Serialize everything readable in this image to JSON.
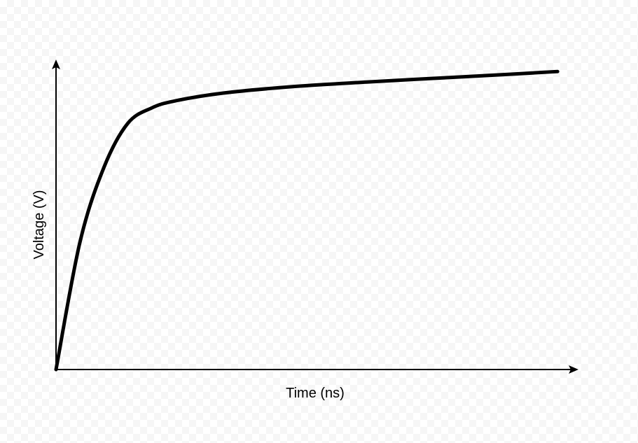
{
  "chart_data": {
    "type": "line",
    "title": "",
    "xlabel": "Time (ns)",
    "ylabel": "Voltage (V)",
    "grid": false,
    "legend": "none",
    "xlim": [
      0,
      10
    ],
    "ylim": [
      0,
      6
    ],
    "series": [
      {
        "color": "#000000",
        "x": [
          0,
          0.5,
          1.0,
          1.5,
          2.0,
          2.5,
          3.5,
          5.0,
          6.5,
          8.0,
          9.5,
          10.5
        ],
        "y": [
          0,
          2.3,
          3.65,
          4.45,
          4.73,
          4.86,
          5.0,
          5.12,
          5.2,
          5.27,
          5.34,
          5.39
        ]
      }
    ],
    "colors": {
      "axis": "#000000",
      "line": "#000000"
    }
  }
}
